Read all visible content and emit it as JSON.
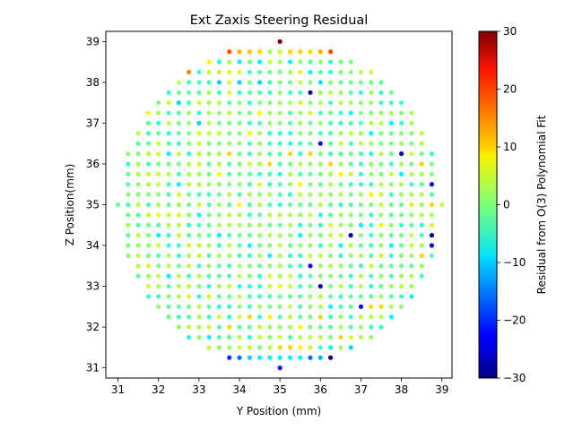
{
  "chart_data": {
    "type": "scatter",
    "title": "Ext Zaxis Steering Residual",
    "xlabel": "Y Position (mm)",
    "ylabel": "Z Position(mm)",
    "xlim": [
      30.7,
      39.25
    ],
    "ylim": [
      30.75,
      39.25
    ],
    "x_ticks": [
      "31",
      "32",
      "33",
      "34",
      "35",
      "36",
      "37",
      "38",
      "39"
    ],
    "y_ticks": [
      "31",
      "32",
      "33",
      "34",
      "35",
      "36",
      "37",
      "38",
      "39"
    ],
    "grid": false,
    "colormap": "jet",
    "colorbar": {
      "label": "Residual from O(3) Polynomial Fit",
      "range": [
        -30,
        30
      ],
      "ticks": [
        "30",
        "20",
        "10",
        "0",
        "−10",
        "−20",
        "−30"
      ]
    },
    "point_grid": {
      "center": [
        35,
        35
      ],
      "spacing": 0.25,
      "radius_mm": 4.0,
      "default_residual": 0
    },
    "points": [
      {
        "x": 35.0,
        "y": 39.0,
        "residual": 30
      },
      {
        "x": 33.75,
        "y": 38.75,
        "residual": 18
      },
      {
        "x": 34.0,
        "y": 38.75,
        "residual": 12
      },
      {
        "x": 34.25,
        "y": 38.75,
        "residual": 11
      },
      {
        "x": 34.5,
        "y": 38.75,
        "residual": 10
      },
      {
        "x": 34.75,
        "y": 38.75,
        "residual": 2
      },
      {
        "x": 35.0,
        "y": 38.75,
        "residual": 4
      },
      {
        "x": 35.25,
        "y": 38.75,
        "residual": 10
      },
      {
        "x": 35.5,
        "y": 38.75,
        "residual": 10
      },
      {
        "x": 35.75,
        "y": 38.75,
        "residual": 10
      },
      {
        "x": 36.0,
        "y": 38.75,
        "residual": 12
      },
      {
        "x": 36.25,
        "y": 38.75,
        "residual": 18
      },
      {
        "x": 32.75,
        "y": 38.25,
        "residual": 15
      },
      {
        "x": 33.25,
        "y": 38.5,
        "residual": 8
      },
      {
        "x": 33.5,
        "y": 38.0,
        "residual": -10
      },
      {
        "x": 34.0,
        "y": 38.0,
        "residual": -10
      },
      {
        "x": 34.5,
        "y": 38.0,
        "residual": -10
      },
      {
        "x": 34.0,
        "y": 38.5,
        "residual": -8
      },
      {
        "x": 34.5,
        "y": 38.5,
        "residual": -8
      },
      {
        "x": 35.25,
        "y": 38.5,
        "residual": -8
      },
      {
        "x": 35.75,
        "y": 37.75,
        "residual": -28
      },
      {
        "x": 35.75,
        "y": 38.25,
        "residual": -8
      },
      {
        "x": 36.0,
        "y": 38.0,
        "residual": -9
      },
      {
        "x": 36.0,
        "y": 36.5,
        "residual": -22
      },
      {
        "x": 38.0,
        "y": 36.25,
        "residual": -26
      },
      {
        "x": 38.75,
        "y": 35.5,
        "residual": -22
      },
      {
        "x": 38.75,
        "y": 34.25,
        "residual": -28
      },
      {
        "x": 38.75,
        "y": 34.0,
        "residual": -26
      },
      {
        "x": 36.75,
        "y": 34.25,
        "residual": -28
      },
      {
        "x": 35.75,
        "y": 33.5,
        "residual": -22
      },
      {
        "x": 36.0,
        "y": 33.0,
        "residual": -28
      },
      {
        "x": 37.0,
        "y": 32.5,
        "residual": -22
      },
      {
        "x": 33.75,
        "y": 31.25,
        "residual": -20
      },
      {
        "x": 34.0,
        "y": 31.25,
        "residual": -16
      },
      {
        "x": 34.25,
        "y": 31.25,
        "residual": -10
      },
      {
        "x": 34.5,
        "y": 31.25,
        "residual": -8
      },
      {
        "x": 34.75,
        "y": 31.25,
        "residual": -8
      },
      {
        "x": 35.0,
        "y": 31.25,
        "residual": -8
      },
      {
        "x": 35.25,
        "y": 31.25,
        "residual": -8
      },
      {
        "x": 35.5,
        "y": 31.25,
        "residual": -8
      },
      {
        "x": 35.75,
        "y": 31.25,
        "residual": -16
      },
      {
        "x": 36.0,
        "y": 31.25,
        "residual": -12
      },
      {
        "x": 36.25,
        "y": 31.25,
        "residual": -30
      },
      {
        "x": 35.0,
        "y": 31.0,
        "residual": -22
      },
      {
        "x": 36.75,
        "y": 31.5,
        "residual": -10
      },
      {
        "x": 33.0,
        "y": 34.75,
        "residual": -6
      },
      {
        "x": 33.5,
        "y": 35.75,
        "residual": 8
      },
      {
        "x": 33.75,
        "y": 36.25,
        "residual": 10
      },
      {
        "x": 34.25,
        "y": 36.75,
        "residual": 8
      },
      {
        "x": 34.5,
        "y": 37.25,
        "residual": 8
      },
      {
        "x": 34.75,
        "y": 36.0,
        "residual": 10
      },
      {
        "x": 35.25,
        "y": 36.25,
        "residual": 10
      },
      {
        "x": 35.75,
        "y": 36.25,
        "residual": 10
      },
      {
        "x": 36.25,
        "y": 36.0,
        "residual": 10
      },
      {
        "x": 34.0,
        "y": 35.0,
        "residual": 8
      },
      {
        "x": 35.5,
        "y": 35.5,
        "residual": 8
      },
      {
        "x": 36.5,
        "y": 35.75,
        "residual": 8
      },
      {
        "x": 37.25,
        "y": 35.25,
        "residual": 8
      },
      {
        "x": 37.5,
        "y": 34.5,
        "residual": 8
      },
      {
        "x": 38.5,
        "y": 36.0,
        "residual": 10
      },
      {
        "x": 38.75,
        "y": 35.0,
        "residual": 10
      },
      {
        "x": 38.75,
        "y": 33.5,
        "residual": 8
      },
      {
        "x": 38.5,
        "y": 33.75,
        "residual": 10
      },
      {
        "x": 31.75,
        "y": 37.25,
        "residual": 8
      },
      {
        "x": 33.75,
        "y": 32.0,
        "residual": 10
      },
      {
        "x": 34.25,
        "y": 32.25,
        "residual": 10
      },
      {
        "x": 34.75,
        "y": 32.25,
        "residual": 8
      },
      {
        "x": 35.0,
        "y": 31.5,
        "residual": 10
      },
      {
        "x": 35.25,
        "y": 31.5,
        "residual": 10
      },
      {
        "x": 35.5,
        "y": 31.5,
        "residual": 8
      },
      {
        "x": 35.5,
        "y": 32.0,
        "residual": 8
      },
      {
        "x": 36.0,
        "y": 32.25,
        "residual": 10
      },
      {
        "x": 36.5,
        "y": 31.75,
        "residual": 10
      },
      {
        "x": 37.25,
        "y": 32.5,
        "residual": 10
      },
      {
        "x": 37.5,
        "y": 32.5,
        "residual": 10
      },
      {
        "x": 32.5,
        "y": 37.5,
        "residual": -10
      },
      {
        "x": 33.0,
        "y": 37.0,
        "residual": -10
      },
      {
        "x": 32.25,
        "y": 36.25,
        "residual": -8
      },
      {
        "x": 32.5,
        "y": 35.5,
        "residual": -8
      },
      {
        "x": 32.0,
        "y": 34.25,
        "residual": -8
      },
      {
        "x": 32.25,
        "y": 33.25,
        "residual": -8
      },
      {
        "x": 33.5,
        "y": 34.25,
        "residual": -8
      },
      {
        "x": 34.25,
        "y": 34.0,
        "residual": -8
      },
      {
        "x": 34.75,
        "y": 33.75,
        "residual": -8
      },
      {
        "x": 35.5,
        "y": 34.25,
        "residual": -8
      },
      {
        "x": 36.5,
        "y": 34.0,
        "residual": -8
      },
      {
        "x": 37.0,
        "y": 34.5,
        "residual": -8
      },
      {
        "x": 37.75,
        "y": 34.0,
        "residual": -8
      },
      {
        "x": 36.75,
        "y": 37.25,
        "residual": -8
      },
      {
        "x": 37.25,
        "y": 36.75,
        "residual": -8
      },
      {
        "x": 37.75,
        "y": 37.0,
        "residual": -8
      },
      {
        "x": 38.0,
        "y": 35.75,
        "residual": -8
      },
      {
        "x": 38.25,
        "y": 32.75,
        "residual": -8
      },
      {
        "x": 37.75,
        "y": 32.25,
        "residual": -8
      },
      {
        "x": 36.25,
        "y": 32.5,
        "residual": -8
      },
      {
        "x": 33.25,
        "y": 31.75,
        "residual": -8
      },
      {
        "x": 32.75,
        "y": 31.75,
        "residual": -6
      },
      {
        "x": 36.25,
        "y": 31.5,
        "residual": -8
      }
    ]
  }
}
